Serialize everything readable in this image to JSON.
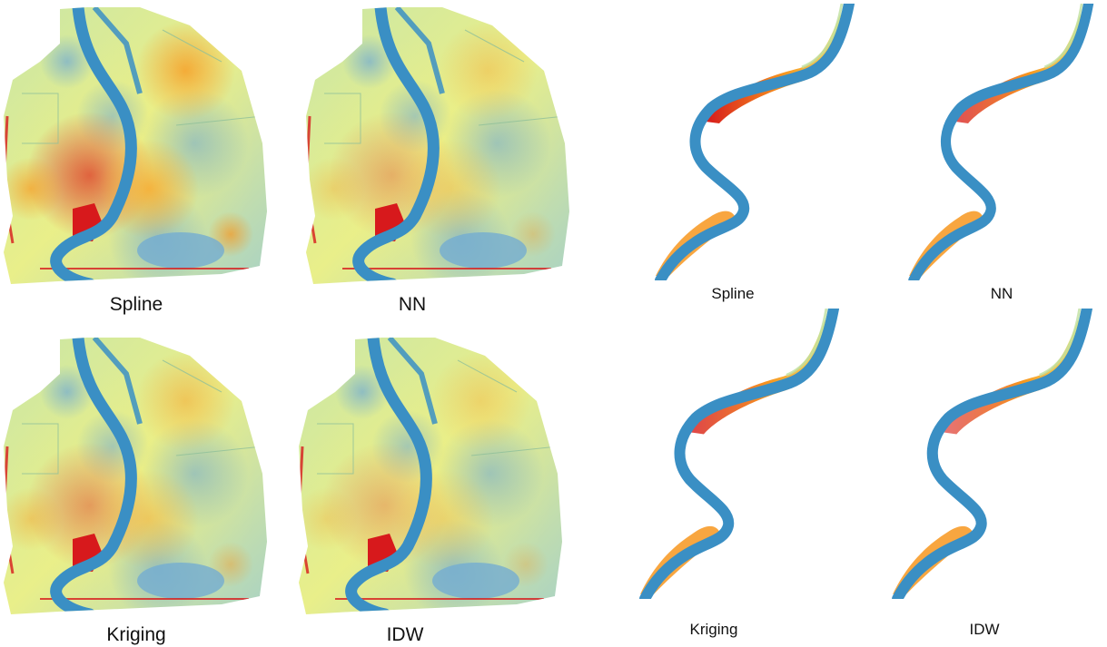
{
  "figure": {
    "left_group": {
      "panels": [
        {
          "label": "Spline",
          "intensity": 1.0
        },
        {
          "label": "NN",
          "intensity": 0.45
        },
        {
          "label": "Kriging",
          "intensity": 0.6
        },
        {
          "label": "IDW",
          "intensity": 0.4
        }
      ]
    },
    "right_group": {
      "panels": [
        {
          "label": "Spline",
          "intensity": 1.0
        },
        {
          "label": "NN",
          "intensity": 0.75
        },
        {
          "label": "Kriging",
          "intensity": 0.8
        },
        {
          "label": "IDW",
          "intensity": 0.6
        }
      ]
    },
    "colors": {
      "water_blue": "#3a8fc4",
      "low_blue": "#74add1",
      "mid_yellow": "#f3f07a",
      "high_orange": "#f7961e",
      "peak_red": "#d7191c"
    }
  }
}
